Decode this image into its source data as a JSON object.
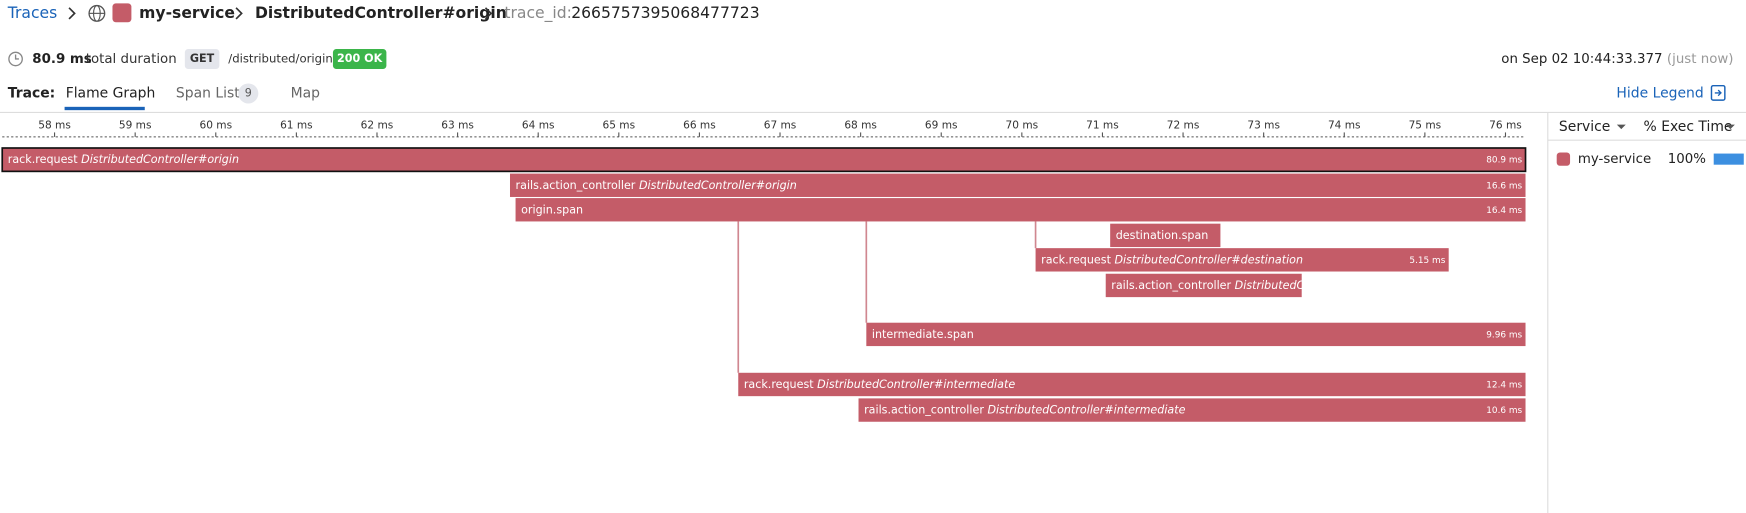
{
  "breadcrumb": {
    "root": "Traces",
    "service": "my-service",
    "resource": "DistributedController#origin",
    "trace_id_label": "trace_id:",
    "trace_id": "2665757395068477723"
  },
  "summary": {
    "duration": "80.9 ms",
    "duration_label": "total duration",
    "method": "GET",
    "path": "/distributed/origin",
    "status": "200 OK",
    "timestamp": "on Sep 02 10:44:33.377",
    "relative_time": "(just now)"
  },
  "tabs": {
    "label": "Trace:",
    "items": [
      {
        "label": "Flame Graph"
      },
      {
        "label": "Span List",
        "count": "9"
      },
      {
        "label": "Map"
      }
    ],
    "hide_legend": "Hide Legend"
  },
  "timeline": {
    "ticks": [
      "58 ms",
      "59 ms",
      "60 ms",
      "61 ms",
      "62 ms",
      "63 ms",
      "64 ms",
      "65 ms",
      "66 ms",
      "67 ms",
      "68 ms",
      "69 ms",
      "70 ms",
      "71 ms",
      "72 ms",
      "73 ms",
      "74 ms",
      "75 ms",
      "76 ms"
    ]
  },
  "spans": [
    {
      "name": "rack.request",
      "resource": "DistributedController#origin",
      "duration": "80.9 ms"
    },
    {
      "name": "rails.action_controller",
      "resource": "DistributedController#origin",
      "duration": "16.6 ms"
    },
    {
      "name": "origin.span",
      "duration": "16.4 ms"
    },
    {
      "name": "destination.span"
    },
    {
      "name": "rack.request",
      "resource": "DistributedController#destination",
      "duration": "5.15 ms"
    },
    {
      "name": "rails.action_controller",
      "resource": "DistributedC..."
    },
    {
      "name": "intermediate.span",
      "duration": "9.96 ms"
    },
    {
      "name": "rack.request",
      "resource": "DistributedController#intermediate",
      "duration": "12.4 ms"
    },
    {
      "name": "rails.action_controller",
      "resource": "DistributedController#intermediate",
      "duration": "10.6 ms"
    }
  ],
  "legend": {
    "columns": [
      "Service",
      "% Exec Time"
    ],
    "rows": [
      {
        "service": "my-service",
        "exec_time": 100,
        "value_label": "100%"
      }
    ]
  }
}
